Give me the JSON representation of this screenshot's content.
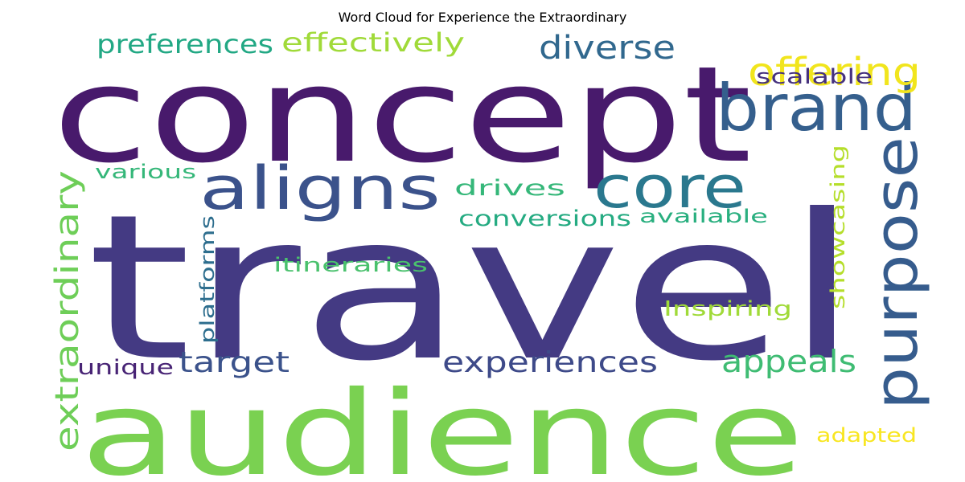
{
  "title": "Word Cloud for Experience the Extraordinary",
  "words": [
    {
      "text": "travel",
      "color": "#443a83"
    },
    {
      "text": "concept",
      "color": "#481a6c"
    },
    {
      "text": "audience",
      "color": "#7ad151"
    },
    {
      "text": "brand",
      "color": "#355f8d"
    },
    {
      "text": "aligns",
      "color": "#3b528b"
    },
    {
      "text": "core",
      "color": "#2a788e"
    },
    {
      "text": "purpose",
      "color": "#365c8d"
    },
    {
      "text": "offering",
      "color": "#f1e51d"
    },
    {
      "text": "diverse",
      "color": "#31688e"
    },
    {
      "text": "preferences",
      "color": "#22a884"
    },
    {
      "text": "effectively",
      "color": "#a0da39"
    },
    {
      "text": "scalable",
      "color": "#46327e"
    },
    {
      "text": "extraordinary",
      "color": "#6ece58"
    },
    {
      "text": "platforms",
      "color": "#2e6e8e"
    },
    {
      "text": "showcasing",
      "color": "#b5de2b"
    },
    {
      "text": "experiences",
      "color": "#3e4a89"
    },
    {
      "text": "appeals",
      "color": "#3fbc73"
    },
    {
      "text": "target",
      "color": "#3b528b"
    },
    {
      "text": "unique",
      "color": "#482475"
    },
    {
      "text": "various",
      "color": "#35b779"
    },
    {
      "text": "drives",
      "color": "#35b779"
    },
    {
      "text": "conversions",
      "color": "#25ab82"
    },
    {
      "text": "available",
      "color": "#29af7f"
    },
    {
      "text": "itineraries",
      "color": "#4ac16d"
    },
    {
      "text": "Inspiring",
      "color": "#a0da39"
    },
    {
      "text": "adapted",
      "color": "#f8e621"
    }
  ]
}
